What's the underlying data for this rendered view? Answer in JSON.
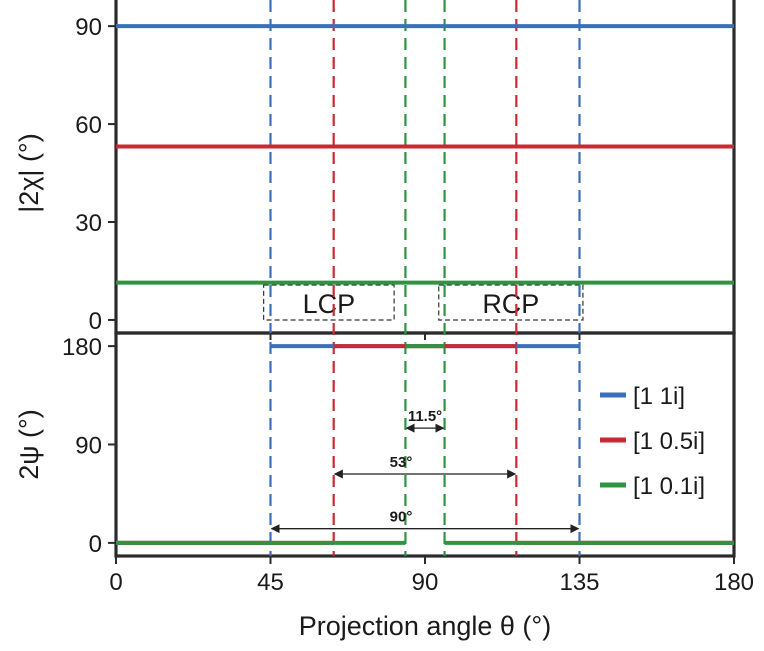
{
  "chart_data": {
    "type": "line",
    "x_axis": {
      "label": "Projection angle θ (°)",
      "range": [
        0,
        180
      ],
      "ticks": [
        "0",
        "45",
        "90",
        "135",
        "180"
      ]
    },
    "panels": [
      {
        "id": "top",
        "ylabel": "|2χ| (°)",
        "ylim": [
          -4,
          98
        ],
        "yticks": [
          "0",
          "30",
          "60",
          "90"
        ],
        "region_labels": [
          {
            "text": "LCP",
            "x_range": [
              43,
              81
            ]
          },
          {
            "text": "RCP",
            "x_range": [
              94,
              136
            ]
          }
        ]
      },
      {
        "id": "bottom",
        "ylabel": "2ψ (°)",
        "ylim": [
          -12,
          192
        ],
        "yticks": [
          "0",
          "90",
          "180"
        ],
        "widths": [
          {
            "text": "11.5°",
            "from": 84.3,
            "to": 95.7,
            "y": 105
          },
          {
            "text": "53°",
            "from": 63.4,
            "to": 116.6,
            "y": 63
          },
          {
            "text": "90°",
            "from": 45,
            "to": 135,
            "y": 13
          }
        ]
      }
    ],
    "series": [
      {
        "name": "[1 1i]",
        "ratio": 1.0,
        "peaks": [
          45,
          135
        ],
        "color": "#3c6fba"
      },
      {
        "name": "[1 0.5i]",
        "ratio": 0.5,
        "peaks": [
          63.4,
          116.6
        ],
        "color": "#c62a33"
      },
      {
        "name": "[1 0.1i]",
        "ratio": 0.1,
        "peaks": [
          84.3,
          95.7
        ],
        "color": "#2f9442"
      }
    ],
    "legend": {
      "position": "right"
    },
    "grid": false
  }
}
